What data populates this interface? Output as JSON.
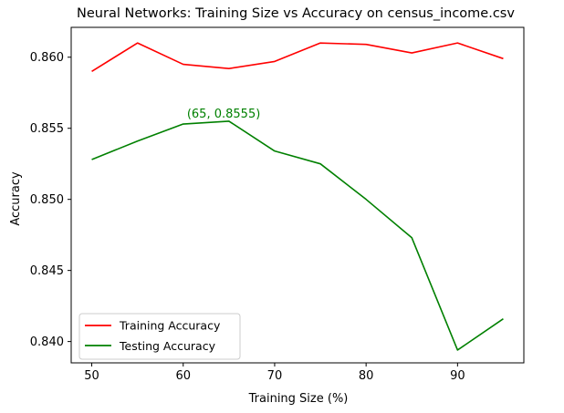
{
  "chart_data": {
    "type": "line",
    "title": "Neural Networks: Training Size vs Accuracy on census_income.csv",
    "xlabel": "Training Size (%)",
    "ylabel": "Accuracy",
    "x": [
      50,
      55,
      60,
      65,
      70,
      75,
      80,
      85,
      90,
      95
    ],
    "xlim": [
      47.75,
      97.25
    ],
    "ylim": [
      0.8385,
      0.8621
    ],
    "xticks": [
      50,
      60,
      70,
      80,
      90
    ],
    "yticks": [
      0.84,
      0.845,
      0.85,
      0.855,
      0.86
    ],
    "xtick_labels": [
      "50",
      "60",
      "70",
      "80",
      "90"
    ],
    "ytick_labels": [
      "0.840",
      "0.845",
      "0.850",
      "0.855",
      "0.860"
    ],
    "grid": false,
    "legend_position": "lower-left",
    "series": [
      {
        "name": "Training Accuracy",
        "color": "#ff0000",
        "values": [
          0.859,
          0.861,
          0.8595,
          0.8592,
          0.8597,
          0.861,
          0.8609,
          0.8603,
          0.861,
          0.8599
        ]
      },
      {
        "name": "Testing Accuracy",
        "color": "#008000",
        "values": [
          0.8528,
          0.8541,
          0.8553,
          0.8555,
          0.8534,
          0.8525,
          0.85,
          0.8473,
          0.8394,
          0.8416
        ]
      }
    ],
    "annotations": [
      {
        "text": "(65, 0.8555)",
        "x": 65,
        "y": 0.8555,
        "color": "#008000"
      }
    ]
  }
}
